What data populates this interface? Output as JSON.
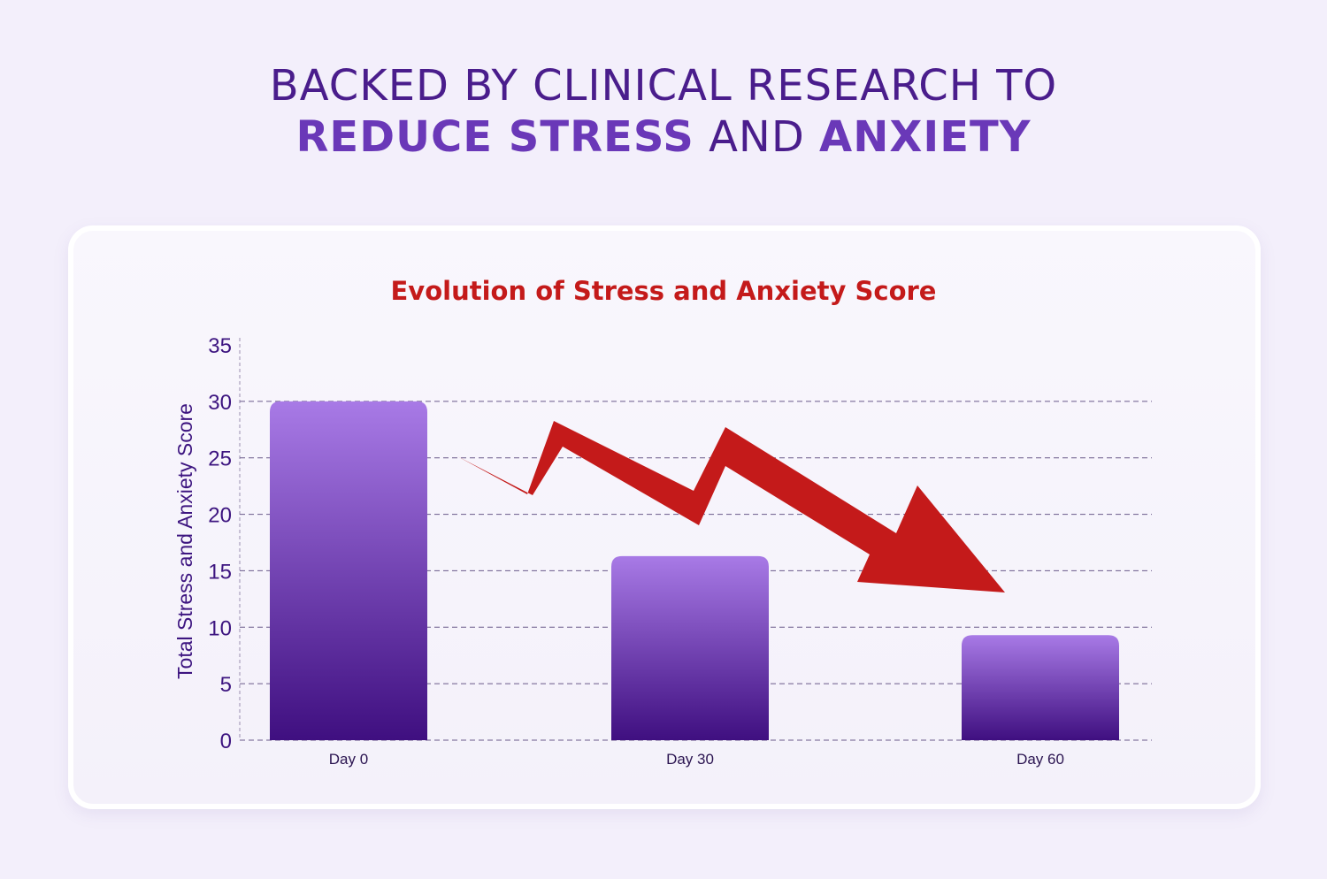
{
  "headline": {
    "line1": "BACKED BY CLINICAL RESEARCH TO",
    "line2_part1": "REDUCE STRESS",
    "line2_part2": "AND",
    "line2_part3": "ANXIETY"
  },
  "colors": {
    "headline": "#4a1d8c",
    "headline_emphasis": "#6a38b8",
    "title": "#c41a1a",
    "bar_top": "#a87ae6",
    "bar_bottom": "#3f0f80",
    "arrow": "#c41a1a",
    "axis_text": "#3d1580",
    "grid": "#6a5a8a"
  },
  "chart_data": {
    "type": "bar",
    "title": "Evolution of Stress and Anxiety Score",
    "xlabel": "",
    "ylabel": "Total Stress and Anxiety Score",
    "categories": [
      "Day 0",
      "Day 30",
      "Day 60"
    ],
    "values": [
      30,
      16.3,
      9.3
    ],
    "ylim": [
      0,
      35
    ],
    "yticks": [
      0,
      5,
      10,
      15,
      20,
      25,
      30,
      35
    ],
    "grid": "horizontal-dashed",
    "legend": "none",
    "annotation": "downward-trend-arrow"
  }
}
